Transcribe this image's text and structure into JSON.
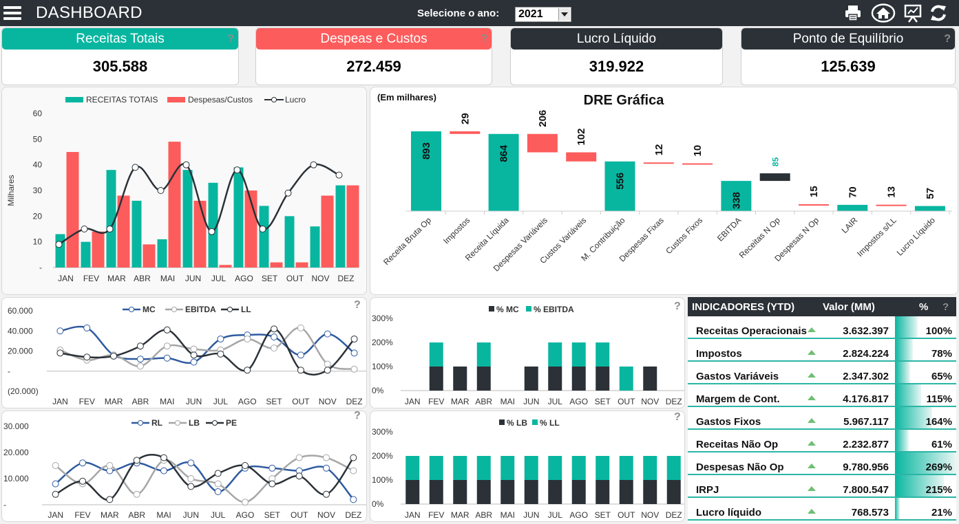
{
  "header": {
    "title": "DASHBOARD",
    "year_label": "Selecione o ano:",
    "year_value": "2021",
    "icons": [
      "print-icon",
      "home-icon",
      "presentation-icon",
      "refresh-icon"
    ]
  },
  "kpis": [
    {
      "label": "Receitas Totais",
      "value": "305.588",
      "color": "#08b6a0",
      "help": "?"
    },
    {
      "label": "Despeas e Custos",
      "value": "272.459",
      "color": "#fd5c5c",
      "help": "?"
    },
    {
      "label": "Lucro Líquido",
      "value": "319.922",
      "color": "#2b3137",
      "help": ""
    },
    {
      "label": "Ponto de Equilíbrio",
      "value": "125.639",
      "color": "#2b3137",
      "help": "?"
    }
  ],
  "colors": {
    "teal": "#08b6a0",
    "red": "#fd5c5c",
    "dark": "#2b3137",
    "blue": "#2e5aa0",
    "gray": "#a6a6a6"
  },
  "months": [
    "JAN",
    "FEV",
    "MAR",
    "ABR",
    "MAI",
    "JUN",
    "JUL",
    "AGO",
    "SET",
    "OUT",
    "NOV",
    "DEZ"
  ],
  "chart_data": [
    {
      "type": "bar",
      "id": "monthly",
      "ylabel": "Milhares",
      "ylim": [
        0,
        60
      ],
      "yticks": [
        "-",
        "10",
        "20",
        "30",
        "40",
        "50",
        "60"
      ],
      "legend": "top",
      "series": [
        {
          "name": "RECEITAS TOTAIS",
          "kind": "bar",
          "values": [
            13,
            10,
            38,
            26,
            11,
            38,
            33,
            39,
            24,
            20,
            16,
            32
          ]
        },
        {
          "name": "Despesas/Custos",
          "kind": "bar",
          "values": [
            45,
            14,
            28,
            9,
            49,
            26,
            1,
            30,
            2,
            2,
            28,
            32
          ]
        },
        {
          "name": "Lucro",
          "kind": "line",
          "values": [
            9,
            15,
            15,
            39,
            30,
            40,
            14,
            38,
            15,
            29,
            40,
            36
          ]
        }
      ]
    },
    {
      "type": "bar",
      "id": "dre",
      "title": "DRE Gráfica",
      "subtitle": "(Em milhares)",
      "categories": [
        "Receita Bruta Op",
        "Impostos",
        "Receita Líquida",
        "Despesas Variáveis",
        "Custos Variáveis",
        "M. Contribuição",
        "Despesas Fixas",
        "Custos Fixos",
        "EBITDA",
        "Receitas N Op",
        "Despesas N Op",
        "LAIR",
        "Impostos s/LL",
        "Lucro Líquido"
      ],
      "values": [
        893,
        29,
        864,
        206,
        102,
        556,
        12,
        10,
        338,
        85,
        15,
        70,
        13,
        57
      ],
      "labels": [
        "893",
        "29",
        "864",
        "206",
        "102",
        "556",
        "12",
        "10",
        "338",
        "85",
        "15",
        "70",
        "13",
        "57"
      ]
    },
    {
      "type": "line",
      "id": "mc-ebitda-ll",
      "ylim": [
        -20000,
        60000
      ],
      "yticks": [
        "(20.000)",
        "-",
        "20.000",
        "40.000",
        "60.000"
      ],
      "legend": "top",
      "series": [
        {
          "name": "MC",
          "values": [
            40000,
            43000,
            16000,
            12000,
            13000,
            9000,
            32000,
            36000,
            34000,
            16000,
            37000,
            18000
          ]
        },
        {
          "name": "EBITDA",
          "values": [
            21000,
            11000,
            16000,
            5000,
            25000,
            22000,
            21000,
            32000,
            23000,
            43000,
            7000,
            2000
          ]
        },
        {
          "name": "LL",
          "values": [
            18000,
            14000,
            15000,
            25000,
            41000,
            16000,
            17000,
            1000,
            42000,
            1000,
            1000,
            32000
          ]
        }
      ]
    },
    {
      "type": "bar",
      "id": "pct-mc-ebitda",
      "ylim": [
        0,
        300
      ],
      "yticks": [
        "0%",
        "100%",
        "200%",
        "300%"
      ],
      "legend": "top",
      "series": [
        {
          "name": "% MC",
          "values": [
            0,
            100,
            100,
            100,
            0,
            100,
            100,
            100,
            100,
            0,
            100,
            0
          ]
        },
        {
          "name": "% EBITDA",
          "values": [
            0,
            100,
            0,
            100,
            0,
            0,
            100,
            100,
            100,
            100,
            0,
            0
          ]
        }
      ]
    },
    {
      "type": "line",
      "id": "rl-lb-pe",
      "ylim": [
        0,
        30000
      ],
      "yticks": [
        "-",
        "10.000",
        "20.000",
        "30.000"
      ],
      "legend": "top",
      "series": [
        {
          "name": "RL",
          "values": [
            8000,
            16000,
            13000,
            16000,
            13000,
            16000,
            5000,
            14000,
            14000,
            13000,
            14000,
            2000
          ]
        },
        {
          "name": "LB",
          "values": [
            15000,
            8000,
            15000,
            4000,
            17000,
            10000,
            8000,
            1000,
            10000,
            18000,
            18000,
            13000
          ]
        },
        {
          "name": "PE",
          "values": [
            4000,
            9000,
            2000,
            17000,
            18000,
            7000,
            12000,
            15000,
            8000,
            11000,
            4000,
            18000
          ]
        }
      ]
    },
    {
      "type": "bar",
      "id": "pct-lb-ll",
      "ylim": [
        0,
        300
      ],
      "yticks": [
        "0%",
        "100%",
        "200%",
        "300%"
      ],
      "legend": "top",
      "series": [
        {
          "name": "% LB",
          "values": [
            100,
            100,
            100,
            100,
            100,
            100,
            100,
            100,
            100,
            100,
            100,
            100
          ]
        },
        {
          "name": "% LL",
          "values": [
            100,
            100,
            100,
            100,
            100,
            100,
            100,
            100,
            100,
            100,
            100,
            100
          ]
        }
      ]
    }
  ],
  "indicators": {
    "headers": {
      "name": "INDICADORES (YTD)",
      "value": "Valor (MM)",
      "pct": "%",
      "help": "?"
    },
    "rows": [
      {
        "label": "Receitas Operacionais",
        "value": "3.632.397",
        "pct": "100%",
        "fill": 1.0
      },
      {
        "label": "Impostos",
        "value": "2.824.224",
        "pct": "78%",
        "fill": 0.78
      },
      {
        "label": "Gastos Variáveis",
        "value": "2.347.302",
        "pct": "65%",
        "fill": 0.65
      },
      {
        "label": "Margem de Cont.",
        "value": "4.176.817",
        "pct": "115%",
        "fill": 1.15
      },
      {
        "label": "Gastos Fixos",
        "value": "5.967.117",
        "pct": "164%",
        "fill": 1.64
      },
      {
        "label": "Receitas Não Op",
        "value": "2.232.877",
        "pct": "61%",
        "fill": 0.61
      },
      {
        "label": "Despesas Não Op",
        "value": "9.780.956",
        "pct": "269%",
        "fill": 2.69
      },
      {
        "label": "IRPJ",
        "value": "7.800.547",
        "pct": "215%",
        "fill": 2.15
      },
      {
        "label": "Lucro líquido",
        "value": "768.573",
        "pct": "21%",
        "fill": 0.21
      }
    ]
  }
}
